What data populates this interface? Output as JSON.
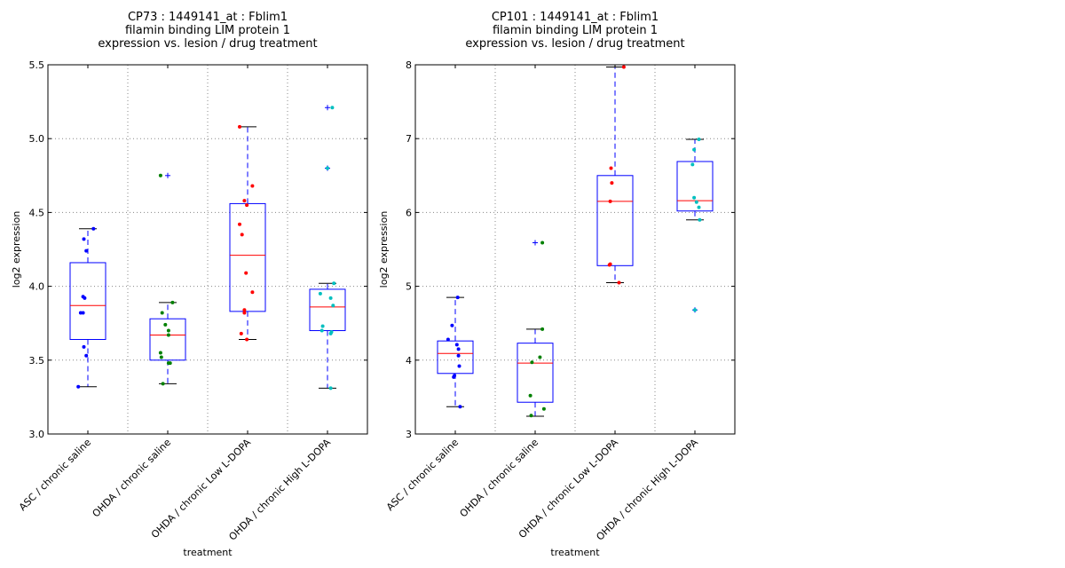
{
  "chart_data": [
    {
      "type": "box",
      "title_lines": [
        "CP73 : 1449141_at : Fblim1",
        "filamin binding LIM protein 1",
        "expression vs. lesion / drug treatment"
      ],
      "xlabel": "treatment",
      "ylabel": "log2 expression",
      "ylim": [
        3.0,
        5.5
      ],
      "yticks": [
        3.0,
        3.5,
        4.0,
        4.5,
        5.0,
        5.5
      ],
      "ytick_labels": [
        "3.0",
        "3.5",
        "4.0",
        "4.5",
        "5.0",
        "5.5"
      ],
      "grid": true,
      "categories": [
        "ASC / chronic saline",
        "OHDA / chronic saline",
        "OHDA / chronic Low L-DOPA",
        "OHDA / chronic High L-DOPA"
      ],
      "point_colors": [
        "#0000ff",
        "#008000",
        "#ff0000",
        "#00bfbf"
      ],
      "boxes": [
        {
          "whislo": 3.32,
          "q1": 3.64,
          "med": 3.87,
          "q3": 4.16,
          "whishi": 4.39,
          "fliers": []
        },
        {
          "whislo": 3.34,
          "q1": 3.5,
          "med": 3.67,
          "q3": 3.78,
          "whishi": 3.89,
          "fliers": [
            4.75
          ]
        },
        {
          "whislo": 3.64,
          "q1": 3.83,
          "med": 4.21,
          "q3": 4.56,
          "whishi": 5.08,
          "fliers": []
        },
        {
          "whislo": 3.31,
          "q1": 3.7,
          "med": 3.86,
          "q3": 3.98,
          "whishi": 4.02,
          "fliers": [
            5.21,
            4.8
          ]
        }
      ],
      "points": [
        [
          4.39,
          4.32,
          4.24,
          3.93,
          3.92,
          3.82,
          3.82,
          3.59,
          3.53,
          3.32
        ],
        [
          4.75,
          3.89,
          3.82,
          3.74,
          3.7,
          3.67,
          3.55,
          3.52,
          3.48,
          3.48,
          3.34
        ],
        [
          5.08,
          4.68,
          4.58,
          4.55,
          4.42,
          4.35,
          4.09,
          3.96,
          3.84,
          3.82,
          3.68,
          3.64
        ],
        [
          5.21,
          4.8,
          4.02,
          3.95,
          3.92,
          3.87,
          3.73,
          3.7,
          3.69,
          3.68,
          3.31
        ]
      ],
      "jitter": [
        [
          0.07,
          -0.05,
          -0.02,
          -0.06,
          -0.04,
          -0.09,
          -0.06,
          -0.05,
          -0.02,
          -0.12
        ],
        [
          -0.09,
          0.06,
          -0.07,
          -0.03,
          0.01,
          0.01,
          -0.09,
          -0.08,
          0.01,
          0.03,
          -0.06
        ],
        [
          -0.1,
          0.06,
          -0.04,
          -0.01,
          -0.1,
          -0.07,
          -0.02,
          0.06,
          -0.04,
          -0.04,
          -0.08,
          -0.01
        ],
        [
          0.06,
          0.0,
          0.08,
          -0.09,
          0.04,
          0.07,
          -0.06,
          -0.07,
          0.05,
          0.04,
          0.04
        ]
      ]
    },
    {
      "type": "box",
      "title_lines": [
        "CP101 : 1449141_at : Fblim1",
        "filamin binding LIM protein 1",
        "expression vs. lesion / drug treatment"
      ],
      "xlabel": "treatment",
      "ylabel": "log2 expression",
      "ylim": [
        3,
        8
      ],
      "yticks": [
        3,
        4,
        5,
        6,
        7,
        8
      ],
      "ytick_labels": [
        "3",
        "4",
        "5",
        "6",
        "7",
        "8"
      ],
      "grid": true,
      "categories": [
        "ASC / chronic saline",
        "OHDA / chronic saline",
        "OHDA / chronic Low L-DOPA",
        "OHDA / chronic High L-DOPA"
      ],
      "point_colors": [
        "#0000ff",
        "#008000",
        "#ff0000",
        "#00bfbf"
      ],
      "boxes": [
        {
          "whislo": 3.37,
          "q1": 3.82,
          "med": 4.09,
          "q3": 4.26,
          "whishi": 4.85,
          "fliers": []
        },
        {
          "whislo": 3.24,
          "q1": 3.43,
          "med": 3.96,
          "q3": 4.23,
          "whishi": 4.42,
          "fliers": [
            5.59
          ]
        },
        {
          "whislo": 5.05,
          "q1": 5.28,
          "med": 6.15,
          "q3": 6.5,
          "whishi": 7.97,
          "fliers": []
        },
        {
          "whislo": 5.9,
          "q1": 6.02,
          "med": 6.16,
          "q3": 6.69,
          "whishi": 6.99,
          "fliers": [
            4.68
          ]
        }
      ],
      "points": [
        [
          4.85,
          4.47,
          4.28,
          4.21,
          4.15,
          4.06,
          3.92,
          3.79,
          3.77,
          3.37
        ],
        [
          5.59,
          4.42,
          4.04,
          3.97,
          3.52,
          3.34,
          3.25
        ],
        [
          7.97,
          6.6,
          6.4,
          6.15,
          5.3,
          5.29,
          5.05
        ],
        [
          6.99,
          6.85,
          6.65,
          6.2,
          6.14,
          6.07,
          5.9,
          4.68
        ]
      ],
      "jitter": [
        [
          0.03,
          -0.04,
          -0.09,
          0.02,
          0.04,
          0.04,
          0.05,
          -0.01,
          -0.02,
          0.06
        ],
        [
          0.09,
          0.09,
          0.06,
          -0.04,
          -0.06,
          0.11,
          -0.05
        ],
        [
          0.11,
          -0.05,
          -0.04,
          -0.06,
          -0.06,
          -0.07,
          0.05
        ],
        [
          0.05,
          -0.01,
          -0.03,
          -0.01,
          0.02,
          0.05,
          0.06,
          0.0
        ]
      ]
    }
  ]
}
